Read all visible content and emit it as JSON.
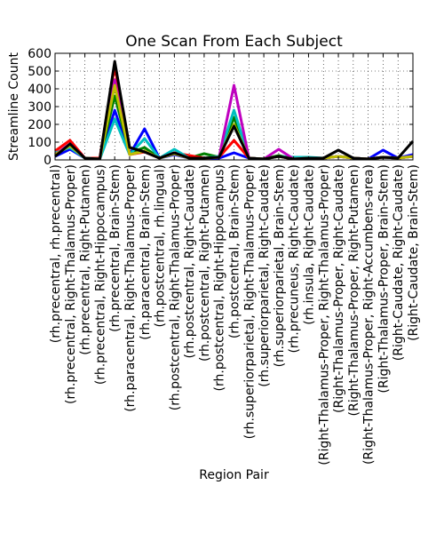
{
  "chart_data": {
    "type": "line",
    "title": "One Scan From Each Subject",
    "xlabel": "Region Pair",
    "ylabel": "Streamline Count",
    "ylim": [
      0,
      600
    ],
    "yticks": [
      "0",
      "100",
      "200",
      "300",
      "400",
      "500",
      "600"
    ],
    "grid": true,
    "legend": "none",
    "categories": [
      "(rh.precentral, rh.precentral)",
      "(rh.precentral, Right-Thalamus-Proper)",
      "(rh.precentral, Right-Putamen)",
      "(rh.precentral, Right-Hippocampus)",
      "(rh.precentral, Brain-Stem)",
      "(rh.paracentral, Right-Thalamus-Proper)",
      "(rh.paracentral, Brain-Stem)",
      "(rh.postcentral, rh.lingual)",
      "(rh.postcentral, Right-Thalamus-Proper)",
      "(rh.postcentral, Right-Caudate)",
      "(rh.postcentral, Right-Putamen)",
      "(rh.postcentral, Right-Hippocampus)",
      "(rh.postcentral, Brain-Stem)",
      "(rh.superiorparietal, Right-Thalamus-Proper)",
      "(rh.superiorparietal, Right-Caudate)",
      "(rh.superiorparietal, Brain-Stem)",
      "(rh.precuneus, Right-Caudate)",
      "(rh.insula, Right-Caudate)",
      "(Right-Thalamus-Proper, Right-Thalamus-Proper)",
      "(Right-Thalamus-Proper, Right-Caudate)",
      "(Right-Thalamus-Proper, Right-Putamen)",
      "(Right-Thalamus-Proper, Right-Accumbens-area)",
      "(Right-Thalamus-Proper, Brain-Stem)",
      "(Right-Caudate, Right-Caudate)",
      "(Right-Caudate, Brain-Stem)"
    ],
    "series": [
      {
        "color": "#0000ff",
        "values": [
          20,
          60,
          10,
          5,
          280,
          30,
          175,
          10,
          30,
          10,
          5,
          10,
          40,
          10,
          5,
          20,
          5,
          10,
          10,
          20,
          10,
          5,
          55,
          10,
          30
        ]
      },
      {
        "color": "#008000",
        "values": [
          30,
          80,
          10,
          5,
          360,
          40,
          70,
          10,
          40,
          10,
          35,
          15,
          240,
          10,
          5,
          25,
          5,
          10,
          10,
          20,
          10,
          5,
          15,
          10,
          20
        ]
      },
      {
        "color": "#ff0000",
        "values": [
          50,
          110,
          10,
          10,
          530,
          30,
          45,
          10,
          40,
          25,
          10,
          15,
          110,
          10,
          5,
          20,
          5,
          10,
          10,
          20,
          10,
          5,
          15,
          10,
          20
        ]
      },
      {
        "color": "#00bfbf",
        "values": [
          40,
          70,
          10,
          5,
          230,
          30,
          120,
          10,
          60,
          10,
          10,
          20,
          280,
          10,
          5,
          20,
          15,
          15,
          10,
          20,
          10,
          5,
          15,
          10,
          20
        ]
      },
      {
        "color": "#bf00bf",
        "values": [
          30,
          90,
          10,
          5,
          450,
          30,
          50,
          10,
          40,
          10,
          10,
          15,
          420,
          10,
          5,
          60,
          5,
          10,
          10,
          20,
          10,
          5,
          15,
          10,
          20
        ]
      },
      {
        "color": "#bfbf00",
        "values": [
          30,
          80,
          10,
          5,
          420,
          30,
          50,
          10,
          35,
          10,
          10,
          15,
          200,
          10,
          5,
          20,
          5,
          10,
          10,
          20,
          10,
          5,
          15,
          10,
          20
        ]
      },
      {
        "color": "#000000",
        "values": [
          20,
          90,
          10,
          5,
          555,
          70,
          45,
          10,
          40,
          10,
          10,
          15,
          190,
          10,
          5,
          20,
          5,
          10,
          10,
          55,
          10,
          5,
          15,
          10,
          105
        ]
      }
    ]
  }
}
